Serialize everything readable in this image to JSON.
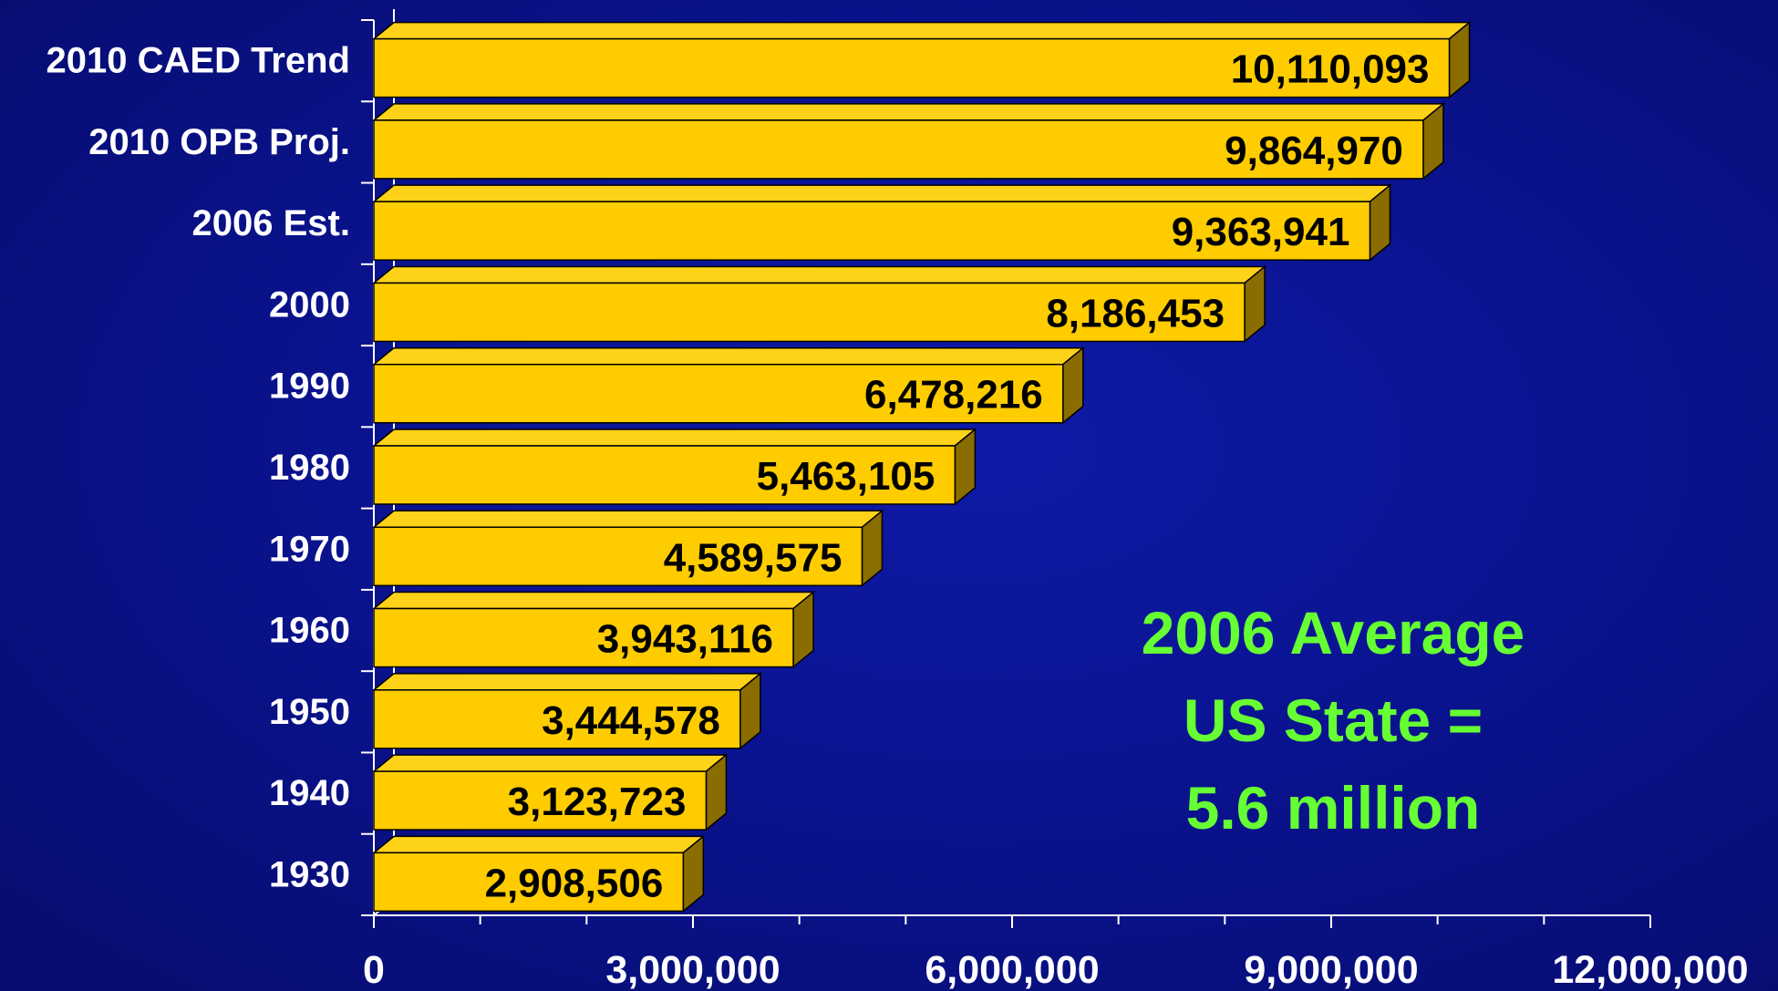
{
  "chart_data": {
    "type": "bar",
    "orientation": "horizontal",
    "style": "3d",
    "categories": [
      "2010 CAED Trend",
      "2010 OPB Proj.",
      "2006 Est.",
      "2000",
      "1990",
      "1980",
      "1970",
      "1960",
      "1950",
      "1940",
      "1930"
    ],
    "values": [
      10110093,
      9864970,
      9363941,
      8186453,
      6478216,
      5463105,
      4589575,
      3943116,
      3444578,
      3123723,
      2908506
    ],
    "value_labels": [
      "10,110,093",
      "9,864,970",
      "9,363,941",
      "8,186,453",
      "6,478,216",
      "5,463,105",
      "4,589,575",
      "3,943,116",
      "3,444,578",
      "3,123,723",
      "2,908,506"
    ],
    "xlim": [
      0,
      12000000
    ],
    "x_ticks": [
      0,
      3000000,
      6000000,
      9000000,
      12000000
    ],
    "x_tick_labels": [
      "0",
      "3,000,000",
      "6,000,000",
      "9,000,000",
      "12,000,000"
    ],
    "title": "",
    "xlabel": "",
    "ylabel": "",
    "grid": false,
    "annotation": [
      "2006 Average",
      "US State =",
      "5.6 million"
    ],
    "colors": {
      "background": "#0a138f",
      "bar_face": "#ffcc00",
      "bar_top": "#ffd21a",
      "bar_side": "#8a6d00",
      "value_text": "#000000",
      "label_text": "#ffffff",
      "annotation_text": "#66ff33"
    }
  }
}
